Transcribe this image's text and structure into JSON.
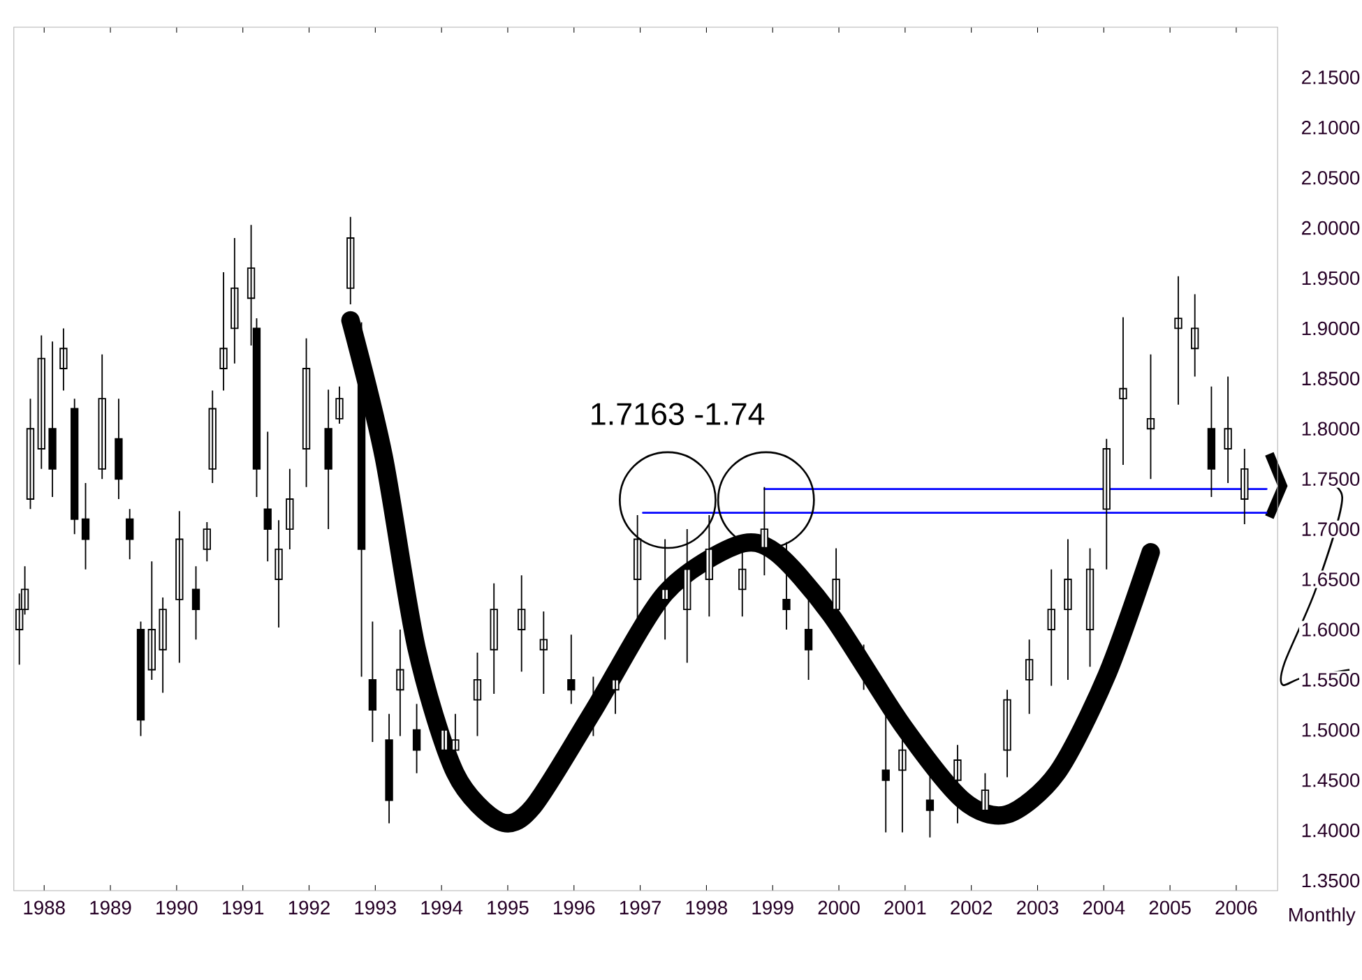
{
  "chart_data": {
    "type": "candlestick",
    "xlabel": "Monthly",
    "annotations": [
      "1.7163 -1.74"
    ],
    "x": [
      "1987-08",
      "1987-09",
      "1987-10",
      "1987-12",
      "1988-02",
      "1988-04",
      "1988-06",
      "1988-08",
      "1988-11",
      "1989-02",
      "1989-04",
      "1989-06",
      "1989-08",
      "1989-10",
      "1990-01",
      "1990-04",
      "1990-06",
      "1990-07",
      "1990-09",
      "1990-11",
      "1991-02",
      "1991-03",
      "1991-05",
      "1991-07",
      "1991-09",
      "1991-12",
      "1992-04",
      "1992-06",
      "1992-08",
      "1992-10",
      "1992-12",
      "1993-03",
      "1993-05",
      "1993-08",
      "1994-01",
      "1994-03",
      "1994-07",
      "1994-10",
      "1995-03",
      "1995-07",
      "1995-12",
      "1996-04",
      "1996-08",
      "1996-12",
      "1997-05",
      "1997-09",
      "1998-01",
      "1998-07",
      "1998-11",
      "1999-03",
      "1999-07",
      "1999-12",
      "2000-05",
      "2000-09",
      "2000-12",
      "2001-05",
      "2001-10",
      "2002-03",
      "2002-07",
      "2002-11",
      "2003-03",
      "2003-06",
      "2003-10",
      "2004-01",
      "2004-04",
      "2004-09",
      "2005-02",
      "2005-05",
      "2005-08",
      "2005-11",
      "2006-02"
    ],
    "ohlc": [
      [
        1.6,
        1.636,
        1.565,
        1.62
      ],
      [
        1.62,
        1.663,
        1.615,
        1.64
      ],
      [
        1.73,
        1.83,
        1.72,
        1.8
      ],
      [
        1.78,
        1.893,
        1.76,
        1.87
      ],
      [
        1.8,
        1.887,
        1.732,
        1.76
      ],
      [
        1.86,
        1.9,
        1.838,
        1.88
      ],
      [
        1.82,
        1.83,
        1.695,
        1.71
      ],
      [
        1.71,
        1.746,
        1.66,
        1.69
      ],
      [
        1.76,
        1.874,
        1.75,
        1.83
      ],
      [
        1.79,
        1.83,
        1.73,
        1.75
      ],
      [
        1.71,
        1.72,
        1.67,
        1.69
      ],
      [
        1.6,
        1.608,
        1.494,
        1.51
      ],
      [
        1.56,
        1.668,
        1.55,
        1.6
      ],
      [
        1.58,
        1.632,
        1.537,
        1.62
      ],
      [
        1.63,
        1.718,
        1.567,
        1.69
      ],
      [
        1.64,
        1.663,
        1.59,
        1.62
      ],
      [
        1.68,
        1.707,
        1.668,
        1.7
      ],
      [
        1.76,
        1.838,
        1.746,
        1.82
      ],
      [
        1.86,
        1.956,
        1.838,
        1.88
      ],
      [
        1.9,
        1.99,
        1.865,
        1.94
      ],
      [
        1.93,
        2.003,
        1.883,
        1.96
      ],
      [
        1.9,
        1.91,
        1.732,
        1.76
      ],
      [
        1.72,
        1.797,
        1.668,
        1.7
      ],
      [
        1.65,
        1.709,
        1.602,
        1.68
      ],
      [
        1.7,
        1.76,
        1.68,
        1.73
      ],
      [
        1.78,
        1.89,
        1.742,
        1.86
      ],
      [
        1.8,
        1.839,
        1.7,
        1.76
      ],
      [
        1.81,
        1.842,
        1.805,
        1.83
      ],
      [
        1.94,
        2.011,
        1.924,
        1.99
      ],
      [
        1.88,
        1.906,
        1.553,
        1.68
      ],
      [
        1.55,
        1.608,
        1.488,
        1.52
      ],
      [
        1.49,
        1.516,
        1.407,
        1.43
      ],
      [
        1.54,
        1.6,
        1.494,
        1.56
      ],
      [
        1.5,
        1.526,
        1.457,
        1.48
      ],
      [
        1.48,
        1.512,
        1.462,
        1.5
      ],
      [
        1.48,
        1.516,
        1.457,
        1.49
      ],
      [
        1.53,
        1.577,
        1.494,
        1.55
      ],
      [
        1.58,
        1.646,
        1.536,
        1.62
      ],
      [
        1.6,
        1.654,
        1.558,
        1.62
      ],
      [
        1.58,
        1.618,
        1.536,
        1.59
      ],
      [
        1.55,
        1.595,
        1.526,
        1.54
      ],
      [
        1.52,
        1.553,
        1.494,
        1.51
      ],
      [
        1.54,
        1.563,
        1.516,
        1.55
      ],
      [
        1.65,
        1.714,
        1.608,
        1.69
      ],
      [
        1.63,
        1.69,
        1.59,
        1.64
      ],
      [
        1.62,
        1.7,
        1.567,
        1.66
      ],
      [
        1.65,
        1.714,
        1.613,
        1.68
      ],
      [
        1.64,
        1.681,
        1.613,
        1.66
      ],
      [
        1.68,
        1.742,
        1.654,
        1.7
      ],
      [
        1.63,
        1.687,
        1.6,
        1.62
      ],
      [
        1.6,
        1.632,
        1.55,
        1.58
      ],
      [
        1.62,
        1.681,
        1.595,
        1.65
      ],
      [
        1.56,
        1.585,
        1.54,
        1.56
      ],
      [
        1.46,
        1.536,
        1.398,
        1.45
      ],
      [
        1.46,
        1.516,
        1.398,
        1.48
      ],
      [
        1.43,
        1.48,
        1.393,
        1.42
      ],
      [
        1.45,
        1.485,
        1.407,
        1.47
      ],
      [
        1.42,
        1.457,
        1.412,
        1.44
      ],
      [
        1.48,
        1.54,
        1.453,
        1.53
      ],
      [
        1.55,
        1.59,
        1.516,
        1.57
      ],
      [
        1.6,
        1.66,
        1.544,
        1.62
      ],
      [
        1.62,
        1.69,
        1.55,
        1.65
      ],
      [
        1.6,
        1.681,
        1.563,
        1.66
      ],
      [
        1.72,
        1.79,
        1.66,
        1.78
      ],
      [
        1.83,
        1.911,
        1.764,
        1.84
      ],
      [
        1.8,
        1.874,
        1.75,
        1.81
      ],
      [
        1.9,
        1.952,
        1.824,
        1.91
      ],
      [
        1.88,
        1.934,
        1.852,
        1.9
      ],
      [
        1.8,
        1.842,
        1.732,
        1.76
      ],
      [
        1.78,
        1.852,
        1.746,
        1.8
      ],
      [
        1.73,
        1.78,
        1.705,
        1.76
      ]
    ],
    "series": [
      {
        "type": "line",
        "color": "#0000ff",
        "x": [
          "1997-01",
          "2006-06"
        ],
        "values": [
          1.7163,
          1.7163
        ]
      },
      {
        "type": "line",
        "color": "#0000ff",
        "x": [
          "1998-11",
          "2006-06"
        ],
        "values": [
          1.74,
          1.74
        ]
      },
      {
        "type": "line",
        "color": "#000000",
        "x": [
          "1992-08",
          "1993-02",
          "1993-08",
          "1994-03",
          "1994-11",
          "1995-05",
          "1996-04",
          "1997-05",
          "1998-06",
          "1999-01",
          "1999-11",
          "2000-12",
          "2001-11",
          "2002-07",
          "2003-04",
          "2004-01",
          "2004-09"
        ],
        "values": [
          1.908,
          1.773,
          1.581,
          1.457,
          1.409,
          1.423,
          1.519,
          1.636,
          1.684,
          1.677,
          1.615,
          1.505,
          1.43,
          1.416,
          1.457,
          1.554,
          1.677
        ]
      }
    ],
    "xlim": [
      "1987-07",
      "2006-08"
    ],
    "ylim": [
      1.34,
      2.2
    ],
    "xticks": [
      {
        "value": "1988",
        "label": "1988"
      },
      {
        "value": "1989",
        "label": "1989"
      },
      {
        "value": "1990",
        "label": "1990"
      },
      {
        "value": "1991",
        "label": "1991"
      },
      {
        "value": "1992",
        "label": "1992"
      },
      {
        "value": "1993",
        "label": "1993"
      },
      {
        "value": "1994",
        "label": "1994"
      },
      {
        "value": "1995",
        "label": "1995"
      },
      {
        "value": "1996",
        "label": "1996"
      },
      {
        "value": "1997",
        "label": "1997"
      },
      {
        "value": "1998",
        "label": "1998"
      },
      {
        "value": "1999",
        "label": "1999"
      },
      {
        "value": "2000",
        "label": "2000"
      },
      {
        "value": "2001",
        "label": "2001"
      },
      {
        "value": "2002",
        "label": "2002"
      },
      {
        "value": "2003",
        "label": "2003"
      },
      {
        "value": "2004",
        "label": "2004"
      },
      {
        "value": "2005",
        "label": "2005"
      },
      {
        "value": "2006",
        "label": "2006"
      }
    ],
    "yticks": [
      {
        "value": 1.35,
        "label": "1.3500"
      },
      {
        "value": 1.4,
        "label": "1.4000"
      },
      {
        "value": 1.45,
        "label": "1.4500"
      },
      {
        "value": 1.5,
        "label": "1.5000"
      },
      {
        "value": 1.55,
        "label": "1.5500"
      },
      {
        "value": 1.6,
        "label": "1.6000"
      },
      {
        "value": 1.65,
        "label": "1.6500"
      },
      {
        "value": 1.7,
        "label": "1.7000"
      },
      {
        "value": 1.75,
        "label": "1.7500"
      },
      {
        "value": 1.8,
        "label": "1.8000"
      },
      {
        "value": 1.85,
        "label": "1.8500"
      },
      {
        "value": 1.9,
        "label": "1.9000"
      },
      {
        "value": 1.95,
        "label": "1.9500"
      },
      {
        "value": 2.0,
        "label": "2.0000"
      },
      {
        "value": 2.05,
        "label": "2.0500"
      },
      {
        "value": 2.1,
        "label": "2.1000"
      },
      {
        "value": 2.15,
        "label": "2.1500"
      }
    ]
  }
}
